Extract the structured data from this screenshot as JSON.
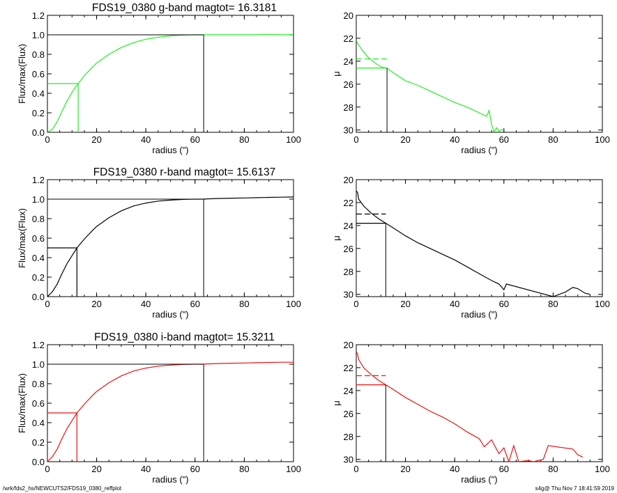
{
  "footer": {
    "left": "/wrk/fds2_hs/NEWCUTS2/FDS19_0380_reffplot",
    "right": "s4g@  Thu Nov  7 18:41:59 2019"
  },
  "chart_data": [
    {
      "type": "line",
      "band": "g",
      "title": "FDS19_0380 g-band  magtot=      16.3181",
      "xlabel": "radius (\")",
      "ylabel": "Flux/max(Flux)",
      "xlim": [
        0,
        100
      ],
      "ylim": [
        0,
        1.2
      ],
      "xticks": [
        0,
        20,
        40,
        60,
        80,
        100
      ],
      "yticks": [
        0.0,
        0.2,
        0.4,
        0.6,
        0.8,
        1.0,
        1.2
      ],
      "ytick_labels": [
        "0.0",
        "0.2",
        "0.4",
        "0.6",
        "0.8",
        "1.0",
        "1.2"
      ],
      "color": "#22ee22",
      "x": [
        0,
        2,
        4,
        6,
        8,
        10,
        12.5,
        15,
        18,
        20,
        25,
        30,
        35,
        40,
        45,
        50,
        55,
        60,
        63.5,
        65,
        70,
        75,
        80,
        85,
        90,
        95,
        100
      ],
      "y": [
        0.0,
        0.03,
        0.11,
        0.22,
        0.32,
        0.41,
        0.5,
        0.58,
        0.66,
        0.71,
        0.8,
        0.87,
        0.92,
        0.955,
        0.975,
        0.99,
        0.997,
        1.0,
        1.0,
        1.0,
        1.0,
        1.0,
        1.0,
        1.0,
        1.005,
        1.0,
        1.003
      ],
      "half_light": {
        "x": 12.5,
        "y": 0.5
      },
      "total": {
        "x": 63.5,
        "y": 1.0
      }
    },
    {
      "type": "line",
      "band": "g",
      "title": "",
      "xlabel": "radius (\")",
      "ylabel": "μ",
      "xlim": [
        0,
        100
      ],
      "ylim": [
        30.2,
        20
      ],
      "xticks": [
        0,
        20,
        40,
        60,
        80,
        100
      ],
      "yticks": [
        20,
        22,
        24,
        26,
        28,
        30
      ],
      "ytick_labels": [
        "20",
        "22",
        "24",
        "26",
        "28",
        "30"
      ],
      "color": "#22ee22",
      "x": [
        0,
        1,
        3,
        5,
        8,
        10,
        12.5,
        15,
        20,
        25,
        30,
        35,
        40,
        45,
        50,
        53,
        54,
        55,
        56,
        57,
        58,
        59,
        60
      ],
      "y": [
        22.2,
        22.6,
        23.2,
        23.7,
        24.2,
        24.5,
        24.6,
        25.0,
        25.7,
        26.1,
        26.6,
        27.1,
        27.6,
        28.0,
        28.5,
        28.8,
        28.3,
        29.5,
        30.2,
        29.8,
        30.1,
        30.0,
        29.9
      ],
      "mu_eff": 24.6,
      "mu_e_mean": 23.8,
      "r_eff": 12.5
    },
    {
      "type": "line",
      "band": "r",
      "title": "FDS19_0380 r-band  magtot=      15.6137",
      "xlabel": "radius (\")",
      "ylabel": "Flux/max(Flux)",
      "xlim": [
        0,
        100
      ],
      "ylim": [
        0,
        1.2
      ],
      "xticks": [
        0,
        20,
        40,
        60,
        80,
        100
      ],
      "yticks": [
        0.0,
        0.2,
        0.4,
        0.6,
        0.8,
        1.0,
        1.2
      ],
      "ytick_labels": [
        "0.0",
        "0.2",
        "0.4",
        "0.6",
        "0.8",
        "1.0",
        "1.2"
      ],
      "color": "#000000",
      "x": [
        0,
        2,
        4,
        6,
        8,
        10,
        12,
        15,
        18,
        20,
        25,
        30,
        35,
        40,
        45,
        50,
        55,
        60,
        63.5,
        65,
        70,
        75,
        80,
        85,
        90,
        95,
        100
      ],
      "y": [
        0.0,
        0.05,
        0.13,
        0.24,
        0.34,
        0.42,
        0.5,
        0.59,
        0.67,
        0.72,
        0.81,
        0.88,
        0.93,
        0.96,
        0.98,
        0.99,
        0.997,
        1.0,
        1.0,
        1.003,
        1.007,
        1.01,
        1.012,
        1.015,
        1.018,
        1.02,
        1.022
      ],
      "half_light": {
        "x": 12,
        "y": 0.5
      },
      "total": {
        "x": 63.5,
        "y": 1.0
      }
    },
    {
      "type": "line",
      "band": "r",
      "title": "",
      "xlabel": "radius (\")",
      "ylabel": "μ",
      "xlim": [
        0,
        100
      ],
      "ylim": [
        30.2,
        20
      ],
      "xticks": [
        0,
        20,
        40,
        60,
        80,
        100
      ],
      "yticks": [
        20,
        22,
        24,
        26,
        28,
        30
      ],
      "ytick_labels": [
        "20",
        "22",
        "24",
        "26",
        "28",
        "30"
      ],
      "color": "#000000",
      "x": [
        0,
        0.5,
        1,
        3,
        6,
        9,
        12,
        15,
        20,
        25,
        30,
        35,
        40,
        45,
        50,
        55,
        58,
        60,
        61,
        80,
        85,
        88,
        90,
        93,
        95
      ],
      "y": [
        21.0,
        21.1,
        21.7,
        22.3,
        22.9,
        23.4,
        23.8,
        24.2,
        24.9,
        25.5,
        26.0,
        26.5,
        27.0,
        27.6,
        28.2,
        28.8,
        29.1,
        29.6,
        29.1,
        30.2,
        29.8,
        29.4,
        29.5,
        29.9,
        30.0
      ],
      "mu_eff": 23.8,
      "mu_e_mean": 23.0,
      "r_eff": 12
    },
    {
      "type": "line",
      "band": "i",
      "title": "FDS19_0380 i-band  magtot=      15.3211",
      "xlabel": "radius (\")",
      "ylabel": "Flux/max(Flux)",
      "xlim": [
        0,
        100
      ],
      "ylim": [
        0,
        1.2
      ],
      "xticks": [
        0,
        20,
        40,
        60,
        80,
        100
      ],
      "yticks": [
        0.0,
        0.2,
        0.4,
        0.6,
        0.8,
        1.0,
        1.2
      ],
      "ytick_labels": [
        "0.0",
        "0.2",
        "0.4",
        "0.6",
        "0.8",
        "1.0",
        "1.2"
      ],
      "color": "#ee1111",
      "x": [
        0,
        2,
        4,
        6,
        8,
        10,
        12,
        15,
        18,
        20,
        25,
        30,
        35,
        40,
        45,
        50,
        55,
        60,
        63.5,
        65,
        70,
        75,
        80,
        85,
        90,
        95,
        100
      ],
      "y": [
        0.0,
        0.05,
        0.13,
        0.24,
        0.34,
        0.42,
        0.5,
        0.59,
        0.67,
        0.72,
        0.81,
        0.88,
        0.93,
        0.96,
        0.98,
        0.99,
        0.997,
        1.0,
        1.0,
        1.003,
        1.007,
        1.01,
        1.012,
        1.015,
        1.018,
        1.02,
        1.02
      ],
      "half_light": {
        "x": 12,
        "y": 0.5
      },
      "total": {
        "x": 63.5,
        "y": 1.0
      }
    },
    {
      "type": "line",
      "band": "i",
      "title": "",
      "xlabel": "radius (\")",
      "ylabel": "μ",
      "xlim": [
        0,
        100
      ],
      "ylim": [
        30.2,
        20
      ],
      "xticks": [
        0,
        20,
        40,
        60,
        80,
        100
      ],
      "yticks": [
        20,
        22,
        24,
        26,
        28,
        30
      ],
      "ytick_labels": [
        "20",
        "22",
        "24",
        "26",
        "28",
        "30"
      ],
      "color": "#ee1111",
      "x": [
        0,
        0.5,
        1,
        3,
        6,
        9,
        12,
        15,
        20,
        25,
        30,
        35,
        40,
        45,
        50,
        52,
        55,
        58,
        60,
        62,
        64,
        66,
        70,
        72,
        76,
        78,
        88,
        90,
        92
      ],
      "y": [
        20.6,
        20.8,
        21.3,
        22.0,
        22.6,
        23.1,
        23.5,
        23.9,
        24.6,
        25.2,
        25.8,
        26.3,
        26.9,
        27.6,
        28.2,
        28.9,
        28.3,
        29.5,
        29.0,
        30.2,
        28.8,
        30.2,
        30.1,
        30.2,
        30.0,
        28.8,
        29.1,
        29.6,
        29.8
      ],
      "mu_eff": 23.5,
      "mu_e_mean": 22.7,
      "r_eff": 12
    }
  ]
}
